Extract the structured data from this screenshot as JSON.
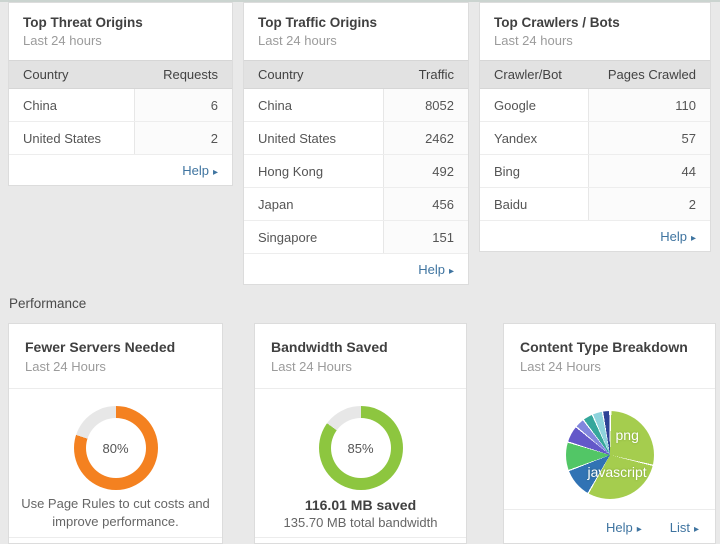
{
  "ui": {
    "arrow": "▸"
  },
  "top_cards": [
    {
      "title": "Top Threat Origins",
      "subtitle": "Last 24 hours",
      "columns": {
        "label": "Country",
        "value": "Requests"
      },
      "rows": [
        {
          "label": "China",
          "value": "6"
        },
        {
          "label": "United States",
          "value": "2"
        }
      ],
      "help": "Help"
    },
    {
      "title": "Top Traffic Origins",
      "subtitle": "Last 24 hours",
      "columns": {
        "label": "Country",
        "value": "Traffic"
      },
      "rows": [
        {
          "label": "China",
          "value": "8052"
        },
        {
          "label": "United States",
          "value": "2462"
        },
        {
          "label": "Hong Kong",
          "value": "492"
        },
        {
          "label": "Japan",
          "value": "456"
        },
        {
          "label": "Singapore",
          "value": "151"
        }
      ],
      "help": "Help"
    },
    {
      "title": "Top Crawlers / Bots",
      "subtitle": "Last 24 hours",
      "columns": {
        "label": "Crawler/Bot",
        "value": "Pages Crawled"
      },
      "rows": [
        {
          "label": "Google",
          "value": "110"
        },
        {
          "label": "Yandex",
          "value": "57"
        },
        {
          "label": "Bing",
          "value": "44"
        },
        {
          "label": "Baidu",
          "value": "2"
        }
      ],
      "help": "Help"
    }
  ],
  "performance": {
    "section_label": "Performance",
    "cards": [
      {
        "title": "Fewer Servers Needed",
        "subtitle": "Last 24 Hours",
        "description_line1": "Use Page Rules to cut costs and",
        "description_line2": "improve performance."
      },
      {
        "title": "Bandwidth Saved",
        "subtitle": "Last 24 Hours",
        "saved_label": "116.01 MB saved",
        "total_label": "135.70 MB total bandwidth"
      },
      {
        "title": "Content Type Breakdown",
        "subtitle": "Last 24 Hours",
        "help": "Help",
        "list": "List"
      }
    ]
  },
  "chart_data": [
    {
      "type": "donut",
      "title": "Fewer Servers Needed",
      "percent": 80,
      "center_label": "80%",
      "color": "#f48120",
      "track": "#e7e7e7"
    },
    {
      "type": "donut",
      "title": "Bandwidth Saved",
      "percent": 85,
      "center_label": "85%",
      "color": "#8dc63f",
      "track": "#e7e7e7"
    },
    {
      "type": "pie",
      "title": "Content Type Breakdown",
      "slices": [
        {
          "label": "png",
          "value": 28,
          "color": "#a5cd4e"
        },
        {
          "label": "javascript",
          "value": 29,
          "color": "#a5cd4e"
        },
        {
          "label": "",
          "value": 10.5,
          "color": "#3173b4"
        },
        {
          "label": "",
          "value": 10,
          "color": "#52c666"
        },
        {
          "label": "",
          "value": 5.8,
          "color": "#6358c9"
        },
        {
          "label": "",
          "value": 3.1,
          "color": "#8186dd"
        },
        {
          "label": "",
          "value": 3.3,
          "color": "#35a79b"
        },
        {
          "label": "",
          "value": 3.3,
          "color": "#8ed3dc"
        },
        {
          "label": "",
          "value": 2.2,
          "color": "#2d4396"
        }
      ]
    }
  ],
  "colors": {
    "accent_orange": "#f48120",
    "accent_green": "#8dc63f",
    "link_blue": "#3f74a0",
    "page_background": "#e9e9e9"
  }
}
